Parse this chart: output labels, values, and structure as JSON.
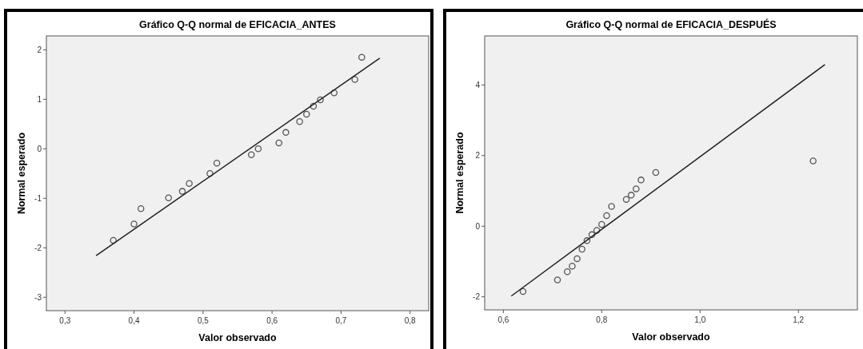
{
  "chart_data": [
    {
      "type": "scatter",
      "title": "Gráfico Q-Q normal de EFICACIA_ANTES",
      "xlabel": "Valor observado",
      "ylabel": "Normal esperado",
      "xlim": [
        0.273,
        0.827
      ],
      "ylim": [
        -3.27,
        2.28
      ],
      "xticks": [
        {
          "value": 0.3,
          "label": "0,3"
        },
        {
          "value": 0.4,
          "label": "0,4"
        },
        {
          "value": 0.5,
          "label": "0,5"
        },
        {
          "value": 0.6,
          "label": "0,6"
        },
        {
          "value": 0.7,
          "label": "0,7"
        },
        {
          "value": 0.8,
          "label": "0,8"
        }
      ],
      "yticks": [
        -3,
        -2,
        -1,
        0,
        1,
        2
      ],
      "grid": false,
      "series": [
        {
          "marker": "circle",
          "color": "#555555",
          "x": [
            0.37,
            0.4,
            0.41,
            0.45,
            0.47,
            0.48,
            0.51,
            0.52,
            0.57,
            0.58,
            0.61,
            0.62,
            0.64,
            0.65,
            0.66,
            0.67,
            0.69,
            0.72,
            0.73
          ],
          "values": [
            -1.85,
            -1.52,
            -1.21,
            -0.99,
            -0.86,
            -0.7,
            -0.5,
            -0.29,
            -0.12,
            0,
            0.12,
            0.33,
            0.55,
            0.7,
            0.86,
            0.99,
            1.13,
            1.4,
            1.85
          ]
        },
        {
          "type": "line",
          "color": "#222222",
          "x": [
            0.345,
            0.756
          ],
          "values": [
            -2.16,
            1.83
          ]
        }
      ]
    },
    {
      "type": "scatter",
      "title": "Gráfico Q-Q normal de EFICACIA_DESPUÉS",
      "xlabel": "Valor observado",
      "ylabel": "Normal esperado",
      "xlim": [
        0.562,
        1.32
      ],
      "ylim": [
        -2.37,
        5.39
      ],
      "xticks": [
        {
          "value": 0.6,
          "label": "0,6"
        },
        {
          "value": 0.8,
          "label": "0,8"
        },
        {
          "value": 1.0,
          "label": "1,0"
        },
        {
          "value": 1.2,
          "label": "1,2"
        }
      ],
      "yticks": [
        -2,
        0,
        2,
        4
      ],
      "grid": false,
      "series": [
        {
          "marker": "circle",
          "color": "#555555",
          "x": [
            0.64,
            0.71,
            0.73,
            0.74,
            0.75,
            0.76,
            0.77,
            0.78,
            0.79,
            0.8,
            0.81,
            0.82,
            0.85,
            0.86,
            0.87,
            0.88,
            0.91,
            1.23
          ],
          "values": [
            -1.85,
            -1.52,
            -1.29,
            -1.13,
            -0.92,
            -0.65,
            -0.41,
            -0.24,
            -0.12,
            0.05,
            0.3,
            0.56,
            0.76,
            0.88,
            1.06,
            1.31,
            1.52,
            1.85
          ]
        },
        {
          "type": "line",
          "color": "#222222",
          "x": [
            0.616,
            1.254
          ],
          "values": [
            -1.98,
            4.58
          ]
        }
      ]
    }
  ]
}
